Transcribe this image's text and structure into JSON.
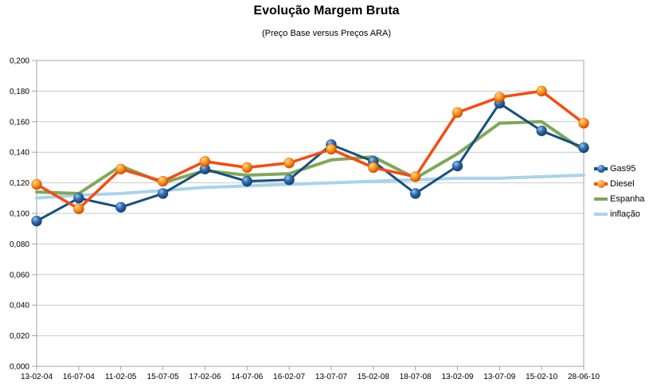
{
  "chart": {
    "title": "Evolução Margem Bruta",
    "subtitle": "(Preço Base versus Preços ARA)"
  },
  "chart_data": {
    "type": "line",
    "title": "Evolução Margem Bruta",
    "subtitle": "(Preço Base versus Preços ARA)",
    "categories": [
      "13-02-04",
      "16-07-04",
      "11-02-05",
      "15-07-05",
      "17-02-06",
      "14-07-06",
      "16-02-07",
      "13-07-07",
      "15-02-08",
      "18-07-08",
      "13-02-09",
      "13-07-09",
      "15-02-10",
      "28-06-10"
    ],
    "series": [
      {
        "name": "Gas95",
        "color": "#17507e",
        "marker": "sphere",
        "marker_colors": {
          "highlight": "#9cc7ee",
          "base": "#2e6cb2",
          "dark": "#123a66"
        },
        "values": [
          0.095,
          0.11,
          0.104,
          0.113,
          0.129,
          0.121,
          0.122,
          0.145,
          0.134,
          0.113,
          0.131,
          0.172,
          0.154,
          0.143
        ]
      },
      {
        "name": "Diesel",
        "color": "#f84a10",
        "marker": "sphere",
        "marker_colors": {
          "highlight": "#ffd98c",
          "base": "#ff9a1f",
          "dark": "#cc4400"
        },
        "values": [
          0.119,
          0.103,
          0.129,
          0.121,
          0.134,
          0.13,
          0.133,
          0.142,
          0.13,
          0.124,
          0.166,
          0.176,
          0.18,
          0.159
        ]
      },
      {
        "name": "Espanha",
        "color": "#7fa95a",
        "marker": "none",
        "values": [
          0.114,
          0.113,
          0.131,
          0.12,
          0.128,
          0.125,
          0.126,
          0.135,
          0.137,
          0.123,
          0.139,
          0.159,
          0.16,
          0.141
        ]
      },
      {
        "name": "inflação",
        "color": "#a9d3ec",
        "marker": "none",
        "values": [
          0.11,
          0.112,
          0.113,
          0.115,
          0.117,
          0.118,
          0.119,
          0.12,
          0.121,
          0.122,
          0.123,
          0.123,
          0.124,
          0.125
        ]
      }
    ],
    "ylim": [
      0.0,
      0.2
    ],
    "y_tick_step": 0.02,
    "y_tick_labels": [
      "0,000",
      "0,020",
      "0,040",
      "0,060",
      "0,080",
      "0,100",
      "0,120",
      "0,140",
      "0,160",
      "0,180",
      "0,200"
    ],
    "grid": "horizontal",
    "legend_position": "right",
    "axis_color": "#a6a6a6",
    "grid_color": "#c9c9c9"
  }
}
